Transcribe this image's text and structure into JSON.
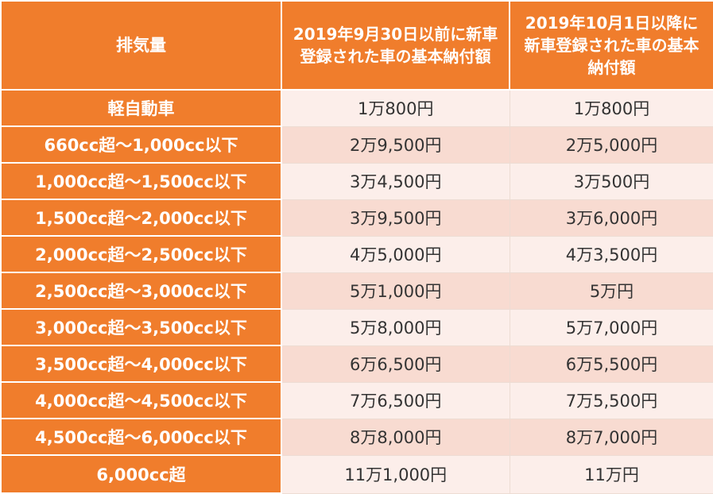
{
  "header": {
    "col1": "排気量",
    "col2": "2019年9月30日以前に新車登録された車の基本納付額",
    "col3": "2019年10月1日以降に新車登録された車の基本納付額"
  },
  "rows": [
    {
      "displacement": "軽自動車",
      "before": "1万800円",
      "after": "1万800円"
    },
    {
      "displacement": "660cc超～1,000cc以下",
      "before": "2万9,500円",
      "after": "2万5,000円"
    },
    {
      "displacement": "1,000cc超～1,500cc以下",
      "before": "3万4,500円",
      "after": "3万500円"
    },
    {
      "displacement": "1,500cc超～2,000cc以下",
      "before": "3万9,500円",
      "after": "3万6,000円"
    },
    {
      "displacement": "2,000cc超～2,500cc以下",
      "before": "4万5,000円",
      "after": "4万3,500円"
    },
    {
      "displacement": "2,500cc超～3,000cc以下",
      "before": "5万1,000円",
      "after": "5万円"
    },
    {
      "displacement": "3,000cc超～3,500cc以下",
      "before": "5万8,000円",
      "after": "5万7,000円"
    },
    {
      "displacement": "3,500cc超～4,000cc以下",
      "before": "6万6,500円",
      "after": "6万5,500円"
    },
    {
      "displacement": "4,000cc超～4,500cc以下",
      "before": "7万6,500円",
      "after": "7万5,500円"
    },
    {
      "displacement": "4,500cc超～6,000cc以下",
      "before": "8万8,000円",
      "after": "8万7,000円"
    },
    {
      "displacement": "6,000cc超",
      "before": "11万1,000円",
      "after": "11万円"
    }
  ],
  "colors": {
    "header_bg": "#f07d2c",
    "row_light": "#fceeea",
    "row_dark": "#f8dbd1"
  }
}
